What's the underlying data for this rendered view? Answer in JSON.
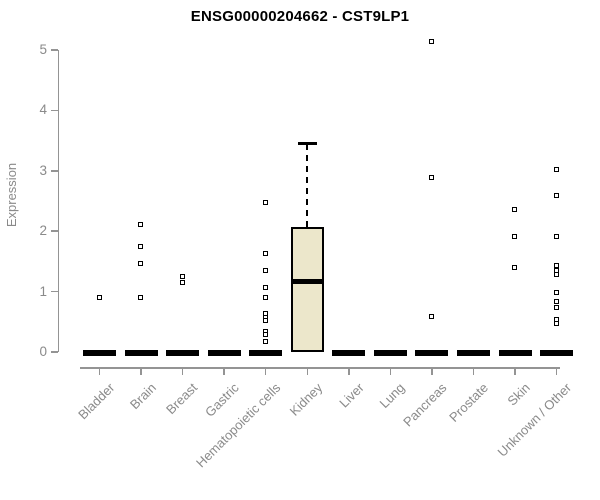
{
  "title": "ENSG00000204662 - CST9LP1",
  "chart_data": {
    "type": "boxplot",
    "title": "ENSG00000204662 - CST9LP1",
    "ylabel": "Expression",
    "xlabel": "",
    "ylim": [
      0,
      5
    ],
    "yticks": [
      0,
      1,
      2,
      3,
      4,
      5
    ],
    "grid": false,
    "legend": false,
    "categories": [
      "Bladder",
      "Brain",
      "Breast",
      "Gastric",
      "Hematopoietic cells",
      "Kidney",
      "Liver",
      "Lung",
      "Pancreas",
      "Prostate",
      "Skin",
      "Unknown / Other"
    ],
    "boxes": [
      {
        "category": "Bladder",
        "q1": 0,
        "median": 0,
        "q3": 0,
        "whisker_low": 0,
        "whisker_high": 0,
        "outliers": [
          0.89
        ]
      },
      {
        "category": "Brain",
        "q1": 0,
        "median": 0,
        "q3": 0,
        "whisker_low": 0,
        "whisker_high": 0,
        "outliers": [
          2.1,
          1.74,
          1.46,
          0.89
        ]
      },
      {
        "category": "Breast",
        "q1": 0,
        "median": 0,
        "q3": 0,
        "whisker_low": 0,
        "whisker_high": 0,
        "outliers": [
          1.24,
          1.14
        ]
      },
      {
        "category": "Gastric",
        "q1": 0,
        "median": 0,
        "q3": 0,
        "whisker_low": 0,
        "whisker_high": 0,
        "outliers": []
      },
      {
        "category": "Hematopoietic cells",
        "q1": 0,
        "median": 0,
        "q3": 0,
        "whisker_low": 0,
        "whisker_high": 0,
        "outliers": [
          2.47,
          1.62,
          1.34,
          1.06,
          0.89,
          0.63,
          0.57,
          0.51,
          0.33,
          0.28,
          0.17
        ]
      },
      {
        "category": "Kidney",
        "q1": 0,
        "median": 1.17,
        "q3": 2.07,
        "whisker_low": 0,
        "whisker_high": 3.45,
        "outliers": []
      },
      {
        "category": "Liver",
        "q1": 0,
        "median": 0,
        "q3": 0,
        "whisker_low": 0,
        "whisker_high": 0,
        "outliers": []
      },
      {
        "category": "Lung",
        "q1": 0,
        "median": 0,
        "q3": 0,
        "whisker_low": 0,
        "whisker_high": 0,
        "outliers": []
      },
      {
        "category": "Pancreas",
        "q1": 0,
        "median": 0,
        "q3": 0,
        "whisker_low": 0,
        "whisker_high": 0,
        "outliers": [
          5.13,
          2.88,
          0.58
        ]
      },
      {
        "category": "Prostate",
        "q1": 0,
        "median": 0,
        "q3": 0,
        "whisker_low": 0,
        "whisker_high": 0,
        "outliers": []
      },
      {
        "category": "Skin",
        "q1": 0,
        "median": 0,
        "q3": 0,
        "whisker_low": 0,
        "whisker_high": 0,
        "outliers": [
          2.35,
          1.9,
          1.39
        ]
      },
      {
        "category": "Unknown / Other",
        "q1": 0,
        "median": 0,
        "q3": 0,
        "whisker_low": 0,
        "whisker_high": 0,
        "outliers": [
          3.01,
          2.58,
          1.9,
          1.42,
          1.34,
          1.28,
          0.98,
          0.83,
          0.73,
          0.53,
          0.47
        ]
      }
    ],
    "colors": {
      "box_fill": "#ece7cb",
      "box_border": "#000000",
      "median_line": "#000000",
      "outlier_marker": "#000000",
      "axis": "#949494",
      "tick_text": "#8a8a8a",
      "title_text": "#000000",
      "background": "#ffffff"
    }
  }
}
